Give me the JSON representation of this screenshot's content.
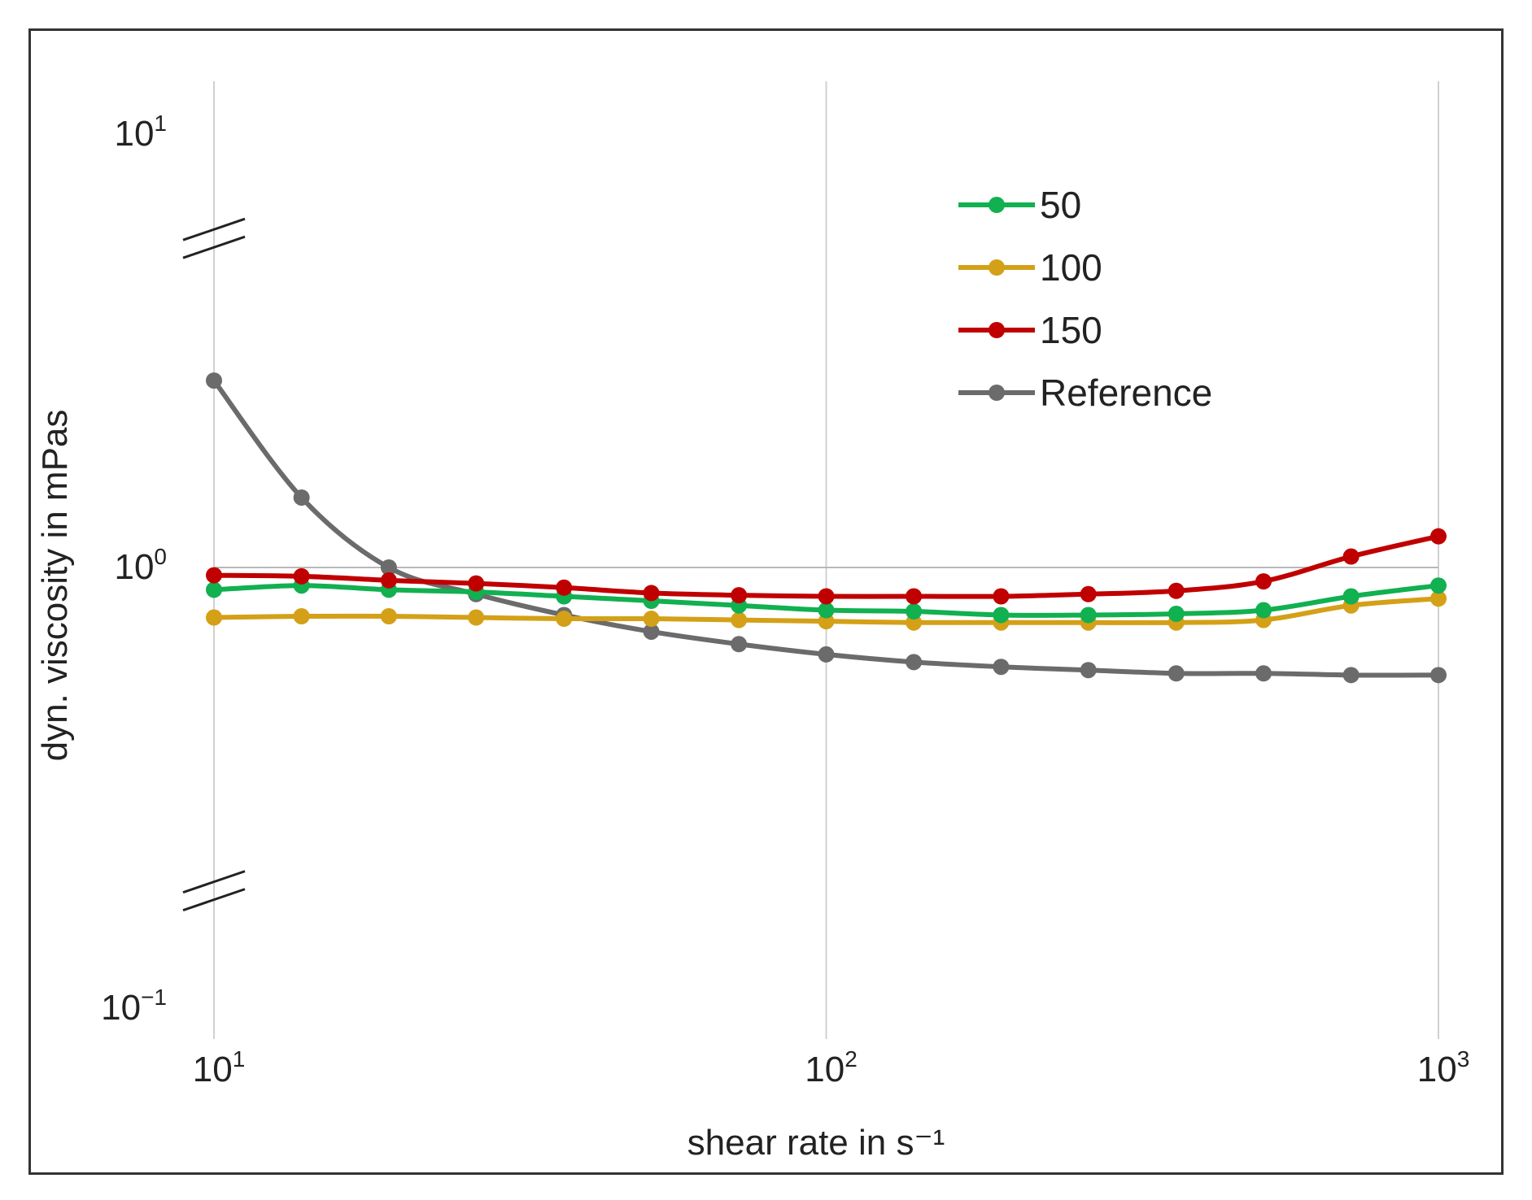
{
  "chart_data": {
    "type": "line",
    "xscale": "log",
    "yscale": "log",
    "xlabel": "shear rate in s⁻¹",
    "ylabel": "dyn. viscosity in mPas",
    "xlim": [
      10,
      1000
    ],
    "ylim": [
      0.1,
      10
    ],
    "x_ticks": [
      {
        "value": 10,
        "base": "10",
        "exp": "1"
      },
      {
        "value": 100,
        "base": "10",
        "exp": "2"
      },
      {
        "value": 1000,
        "base": "10",
        "exp": "3"
      }
    ],
    "y_ticks": [
      {
        "value": 10,
        "base": "10",
        "exp": "1"
      },
      {
        "value": 1,
        "base": "10",
        "exp": "0"
      },
      {
        "value": 0.1,
        "base": "10",
        "exp": "−1"
      }
    ],
    "axis_breaks": [
      5.6,
      0.18
    ],
    "grid": true,
    "legend_position": "top-right",
    "x": [
      10,
      13.9,
      19.3,
      26.8,
      37.3,
      51.8,
      72.0,
      100,
      139,
      193,
      268,
      373,
      518,
      720,
      1000
    ],
    "series": [
      {
        "name": "50",
        "color": "#11b050",
        "values": [
          0.89,
          0.91,
          0.89,
          0.88,
          0.86,
          0.84,
          0.82,
          0.8,
          0.795,
          0.78,
          0.78,
          0.785,
          0.8,
          0.86,
          0.91
        ]
      },
      {
        "name": "100",
        "color": "#d4a017",
        "values": [
          0.77,
          0.775,
          0.775,
          0.77,
          0.765,
          0.765,
          0.76,
          0.755,
          0.75,
          0.75,
          0.75,
          0.75,
          0.76,
          0.82,
          0.85
        ]
      },
      {
        "name": "150",
        "color": "#c00000",
        "values": [
          0.96,
          0.955,
          0.935,
          0.92,
          0.9,
          0.875,
          0.865,
          0.86,
          0.86,
          0.86,
          0.87,
          0.885,
          0.93,
          1.06,
          1.18
        ]
      },
      {
        "name": "Reference",
        "color": "#6b6b6b",
        "values": [
          2.7,
          1.45,
          1.0,
          0.87,
          0.78,
          0.715,
          0.67,
          0.635,
          0.61,
          0.595,
          0.585,
          0.575,
          0.575,
          0.57,
          0.57
        ]
      }
    ]
  }
}
